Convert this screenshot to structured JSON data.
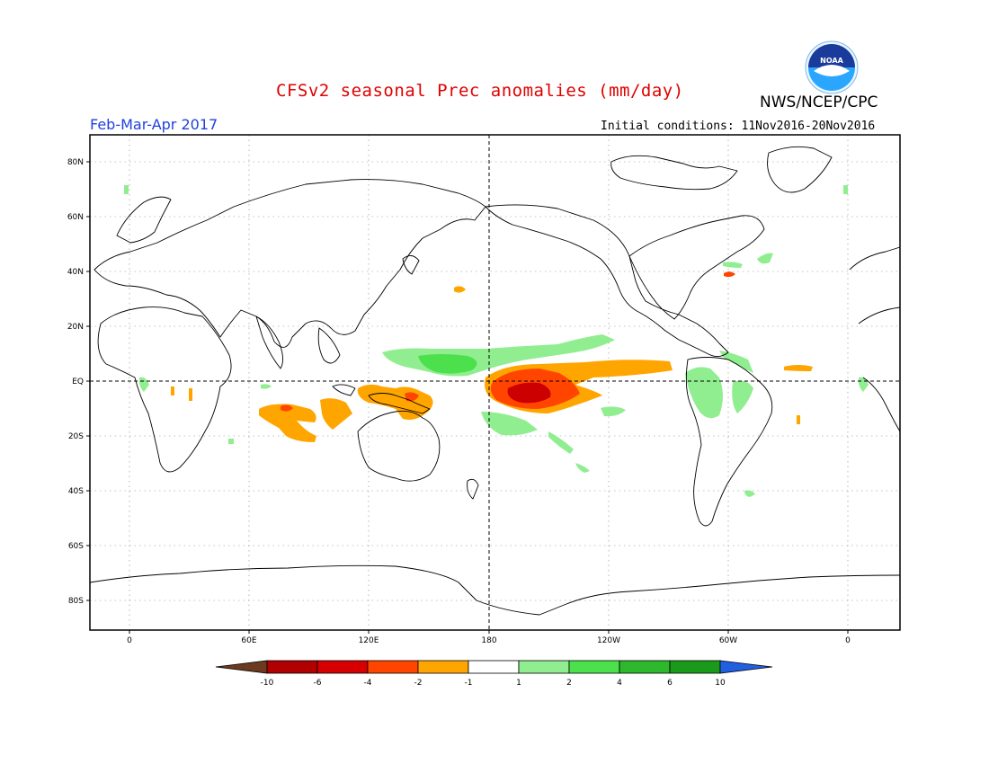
{
  "title": "CFSv2 seasonal Prec anomalies (mm/day)",
  "agency": "NWS/NCEP/CPC",
  "logo_text": "NOAA",
  "period": "Feb-Mar-Apr 2017",
  "initial_conditions": "Initial conditions: 11Nov2016-20Nov2016",
  "lat_labels": [
    "80N",
    "60N",
    "40N",
    "20N",
    "EQ",
    "20S",
    "40S",
    "60S",
    "80S"
  ],
  "lon_labels": [
    "0",
    "60E",
    "120E",
    "180",
    "120W",
    "60W",
    "0"
  ],
  "colorbar": {
    "labels": [
      "-10",
      "-6",
      "-4",
      "-2",
      "-1",
      "1",
      "2",
      "4",
      "6",
      "10"
    ],
    "colors": [
      "#6b3a1f",
      "#b00000",
      "#d60000",
      "#ff4500",
      "#ffa500",
      "#ffffff",
      "#90ee90",
      "#4ce04c",
      "#2eb82e",
      "#1a9a1a",
      "#2060e0"
    ]
  },
  "colors": {
    "dry_strong": "#cc0000",
    "dry_mid": "#ff4500",
    "dry_light": "#ffa500",
    "wet_light": "#90ee90",
    "wet_mid": "#4ce04c",
    "title": "#e00000",
    "period": "#2040e0"
  }
}
